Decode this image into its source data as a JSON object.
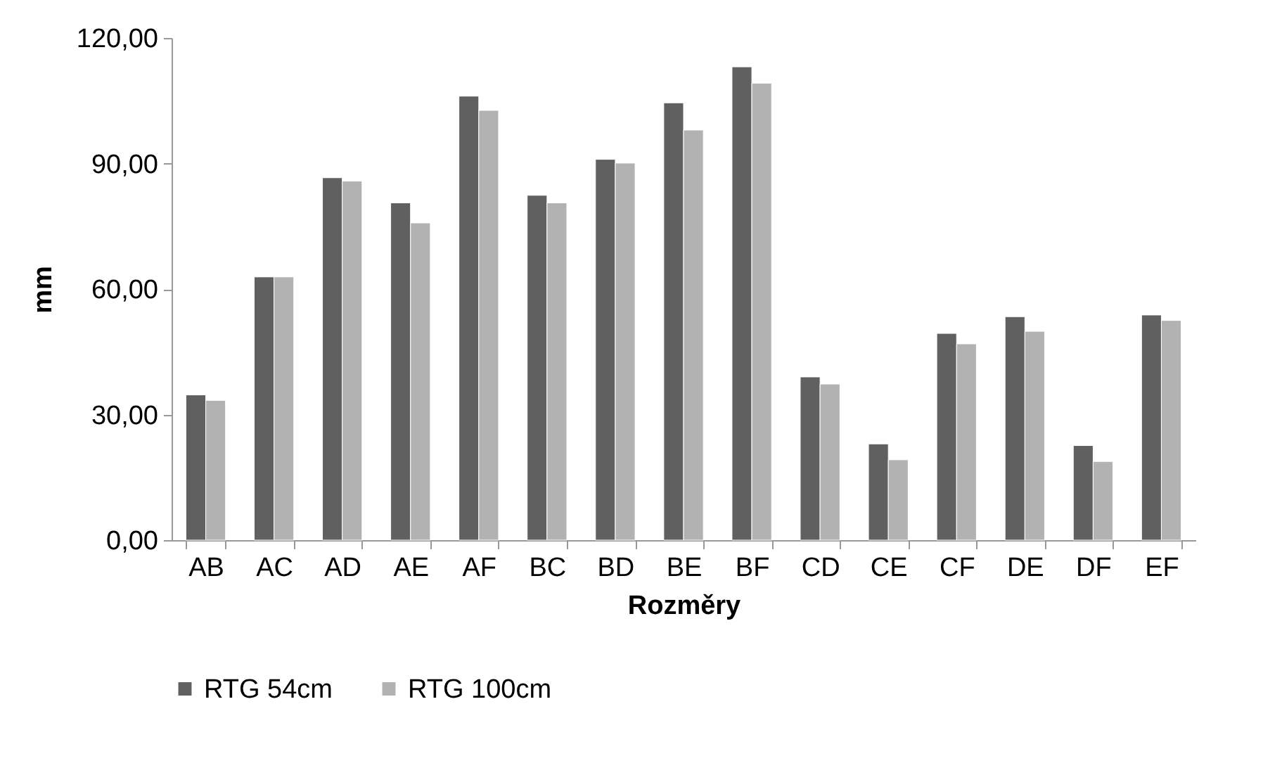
{
  "chart_data": {
    "type": "bar",
    "xlabel": "Rozměry",
    "ylabel": "mm",
    "categories": [
      "AB",
      "AC",
      "AD",
      "AE",
      "AF",
      "BC",
      "BD",
      "BE",
      "BF",
      "CD",
      "CE",
      "CF",
      "DE",
      "DF",
      "EF"
    ],
    "series": [
      {
        "name": "RTG 54cm",
        "color": "#606060",
        "values": [
          34.7,
          62.9,
          86.6,
          80.6,
          106.1,
          82.4,
          91.0,
          104.5,
          113.1,
          39.0,
          23.0,
          49.4,
          53.4,
          22.6,
          53.8
        ]
      },
      {
        "name": "RTG 100cm",
        "color": "#b2b2b2",
        "values": [
          33.4,
          62.9,
          85.8,
          75.8,
          102.7,
          80.6,
          90.1,
          98.0,
          109.2,
          37.3,
          19.2,
          46.9,
          49.9,
          18.8,
          52.5
        ]
      }
    ],
    "ylim": [
      0,
      120
    ],
    "yticks": [
      {
        "value": 0,
        "label": "0,00"
      },
      {
        "value": 30,
        "label": "30,00"
      },
      {
        "value": 60,
        "label": "60,00"
      },
      {
        "value": 90,
        "label": "90,00"
      },
      {
        "value": 120,
        "label": "120,00"
      }
    ],
    "grid": false,
    "legend": "bottom"
  }
}
